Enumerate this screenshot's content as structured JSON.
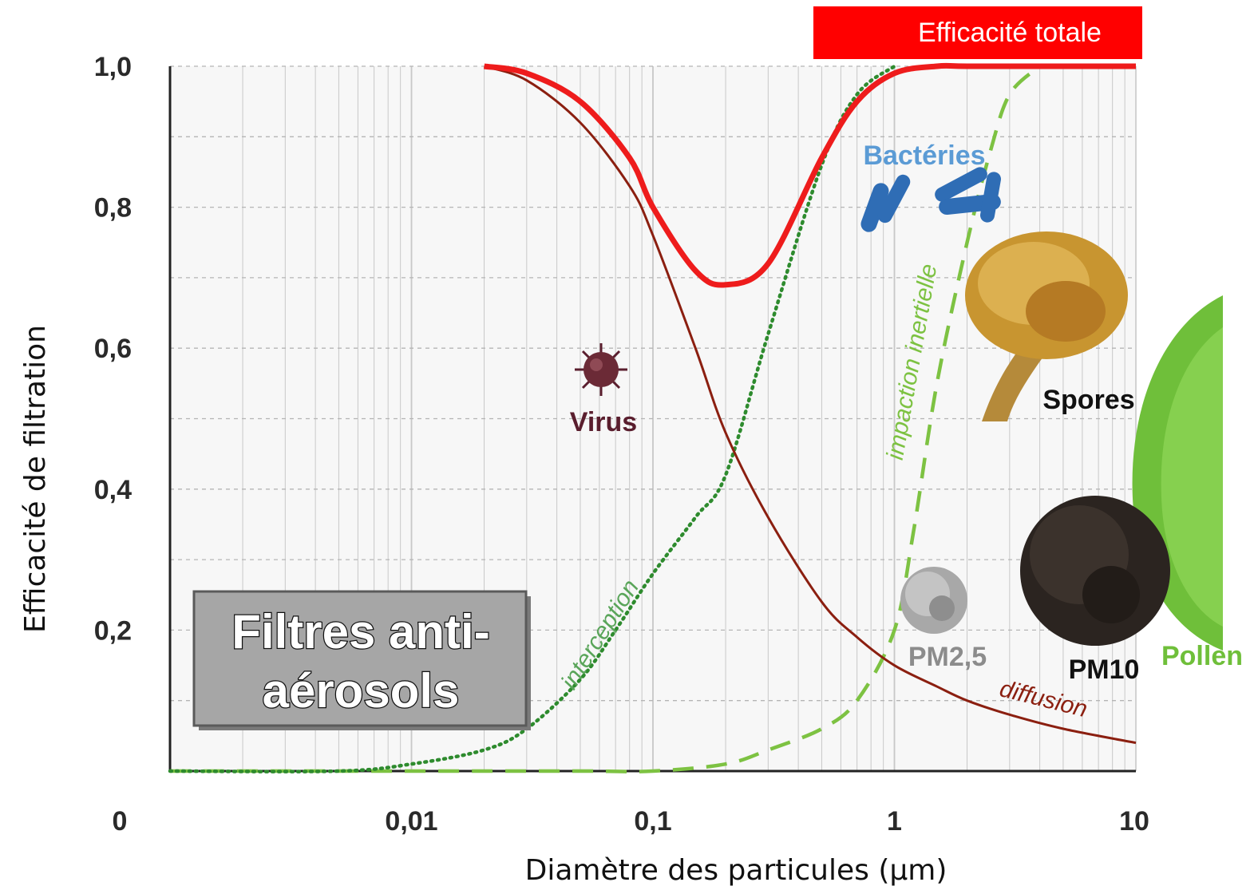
{
  "colors": {
    "total": "#ee1c1c",
    "diffusion": "#8b1f10",
    "interception": "#2e8b2e",
    "impaction": "#7dc242",
    "virus": "#5a1e2e",
    "bacteria": "#5b9bd5",
    "pollen": "#6fbf3a",
    "pm25": "#8c8c8c",
    "badge": "#ff0000"
  },
  "box_title_lines": [
    "Filtres anti-",
    "aérosols"
  ],
  "particles": {
    "virus": "Virus",
    "bacteria": "Bactéries",
    "spores": "Spores",
    "pm25": "PM2,5",
    "pm10": "PM10",
    "pollen": "Pollen"
  },
  "chart_data": {
    "type": "line",
    "x_scale": "log",
    "xlabel": "Diamètre des particules (µm)",
    "ylabel": "Efficacité de filtration",
    "ylim": [
      0,
      1.0
    ],
    "xlim": [
      0.001,
      10
    ],
    "x_ticks": [
      {
        "value": 0.001,
        "label": "0"
      },
      {
        "value": 0.01,
        "label": "0,01"
      },
      {
        "value": 0.1,
        "label": "0,1"
      },
      {
        "value": 1,
        "label": "1"
      },
      {
        "value": 10,
        "label": "10"
      }
    ],
    "y_ticks": [
      {
        "value": 0.2,
        "label": "0,2"
      },
      {
        "value": 0.4,
        "label": "0,4"
      },
      {
        "value": 0.6,
        "label": "0,6"
      },
      {
        "value": 0.8,
        "label": "0,8"
      },
      {
        "value": 1.0,
        "label": "1,0"
      }
    ],
    "grid": true,
    "series": [
      {
        "name": "Efficacité totale",
        "style": "solid-thick",
        "x": [
          0.02,
          0.03,
          0.05,
          0.08,
          0.1,
          0.15,
          0.2,
          0.3,
          0.5,
          0.7,
          1,
          1.5,
          2,
          5,
          10
        ],
        "y": [
          1.0,
          0.99,
          0.95,
          0.87,
          0.8,
          0.71,
          0.69,
          0.72,
          0.87,
          0.95,
          0.99,
          1.0,
          1.0,
          1.0,
          1.0
        ]
      },
      {
        "name": "diffusion",
        "style": "solid",
        "x": [
          0.02,
          0.03,
          0.05,
          0.08,
          0.1,
          0.15,
          0.2,
          0.3,
          0.5,
          0.7,
          1,
          1.5,
          2,
          3,
          5,
          10
        ],
        "y": [
          1.0,
          0.98,
          0.92,
          0.83,
          0.76,
          0.6,
          0.48,
          0.36,
          0.24,
          0.19,
          0.15,
          0.12,
          0.1,
          0.08,
          0.06,
          0.04
        ]
      },
      {
        "name": "interception",
        "style": "dotted",
        "x": [
          0.001,
          0.005,
          0.01,
          0.02,
          0.03,
          0.05,
          0.07,
          0.1,
          0.15,
          0.2,
          0.3,
          0.5,
          0.7,
          1
        ],
        "y": [
          0.0,
          0.0,
          0.01,
          0.03,
          0.06,
          0.13,
          0.2,
          0.28,
          0.36,
          0.42,
          0.62,
          0.86,
          0.96,
          1.0
        ]
      },
      {
        "name": "impaction inertielle",
        "style": "dashed",
        "x": [
          0.001,
          0.01,
          0.05,
          0.1,
          0.2,
          0.3,
          0.5,
          0.7,
          1,
          1.2,
          1.5,
          2,
          2.5,
          3,
          4
        ],
        "y": [
          0.0,
          0.0,
          0.0,
          0.0,
          0.01,
          0.03,
          0.06,
          0.1,
          0.2,
          0.34,
          0.55,
          0.75,
          0.88,
          0.96,
          1.0
        ]
      }
    ]
  }
}
